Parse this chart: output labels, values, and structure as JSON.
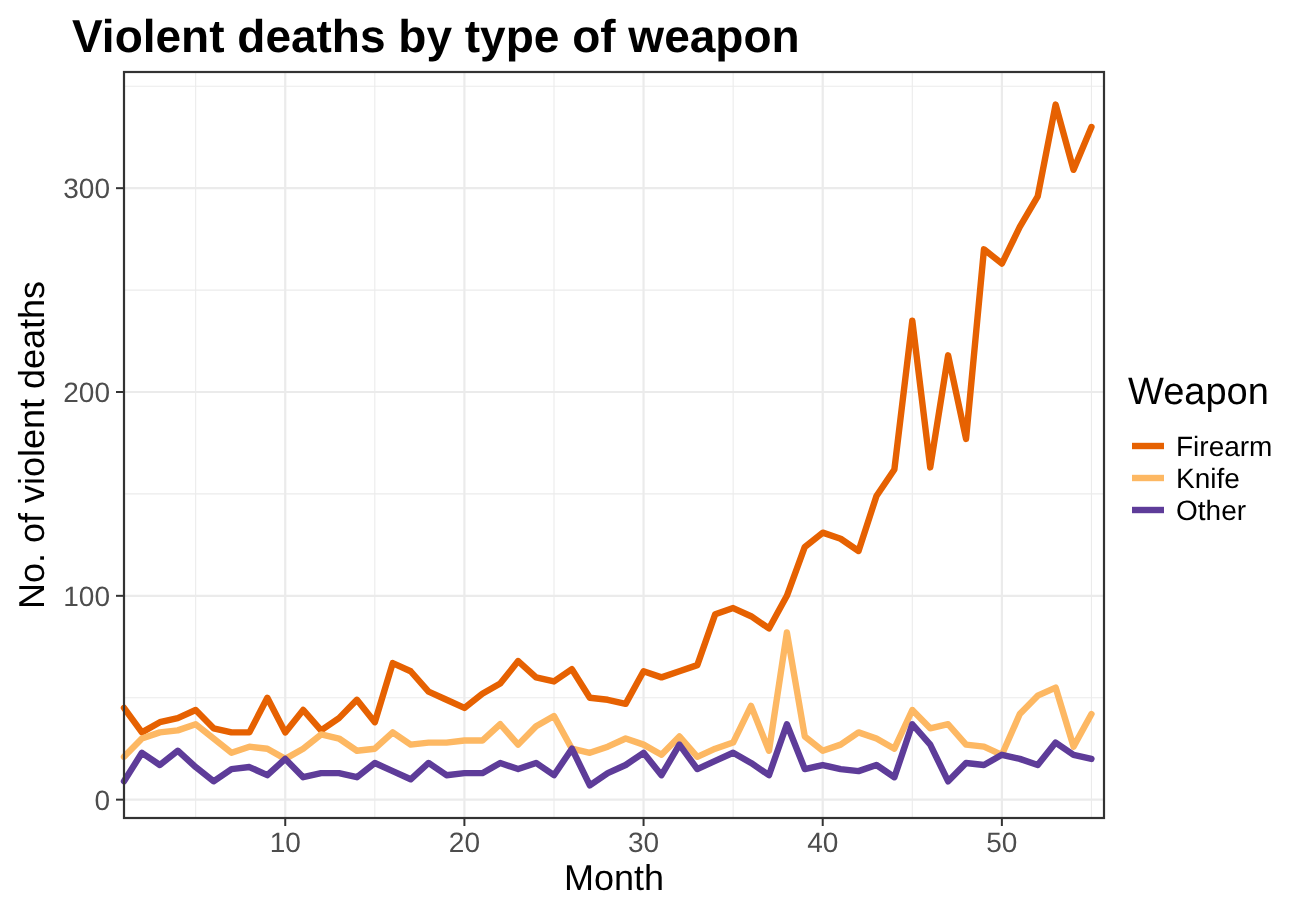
{
  "chart_data": {
    "type": "line",
    "title": "Violent deaths by type of weapon",
    "xlabel": "Month",
    "ylabel": "No. of violent deaths",
    "legend_title": "Weapon",
    "legend": "right",
    "grid": true,
    "x": [
      1,
      2,
      3,
      4,
      5,
      6,
      7,
      8,
      9,
      10,
      11,
      12,
      13,
      14,
      15,
      16,
      17,
      18,
      19,
      20,
      21,
      22,
      23,
      24,
      25,
      26,
      27,
      28,
      29,
      30,
      31,
      32,
      33,
      34,
      35,
      36,
      37,
      38,
      39,
      40,
      41,
      42,
      43,
      44,
      45,
      46,
      47,
      48,
      49,
      50,
      51,
      52,
      53,
      54,
      55
    ],
    "xlim": [
      1,
      55.7
    ],
    "xticks": [
      10,
      20,
      30,
      40,
      50
    ],
    "ylim": [
      -9,
      357
    ],
    "yticks": [
      0,
      100,
      200,
      300
    ],
    "series": [
      {
        "name": "Firearm",
        "color": "#e66101",
        "values": [
          45,
          33,
          38,
          40,
          44,
          35,
          33,
          33,
          50,
          33,
          44,
          34,
          40,
          49,
          38,
          67,
          63,
          53,
          49,
          45,
          52,
          57,
          68,
          60,
          58,
          64,
          50,
          49,
          47,
          63,
          60,
          63,
          66,
          91,
          94,
          90,
          84,
          100,
          124,
          131,
          128,
          122,
          149,
          162,
          235,
          163,
          218,
          177,
          270,
          263,
          281,
          296,
          341,
          309,
          330
        ]
      },
      {
        "name": "Knife",
        "color": "#fdb863",
        "values": [
          21,
          30,
          33,
          34,
          37,
          30,
          23,
          26,
          25,
          20,
          25,
          32,
          30,
          24,
          25,
          33,
          27,
          28,
          28,
          29,
          29,
          37,
          27,
          36,
          41,
          25,
          23,
          26,
          30,
          27,
          22,
          31,
          21,
          25,
          28,
          46,
          24,
          82,
          31,
          24,
          27,
          33,
          30,
          25,
          44,
          35,
          37,
          27,
          26,
          22,
          42,
          51,
          55,
          26,
          42
        ]
      },
      {
        "name": "Other",
        "color": "#5e3c99",
        "values": [
          9,
          23,
          17,
          24,
          16,
          9,
          15,
          16,
          12,
          20,
          11,
          13,
          13,
          11,
          18,
          14,
          10,
          18,
          12,
          13,
          13,
          18,
          15,
          18,
          12,
          25,
          7,
          13,
          17,
          23,
          12,
          27,
          15,
          19,
          23,
          18,
          12,
          37,
          15,
          17,
          15,
          14,
          17,
          11,
          37,
          27,
          9,
          18,
          17,
          22,
          20,
          17,
          28,
          22,
          20
        ]
      }
    ]
  }
}
